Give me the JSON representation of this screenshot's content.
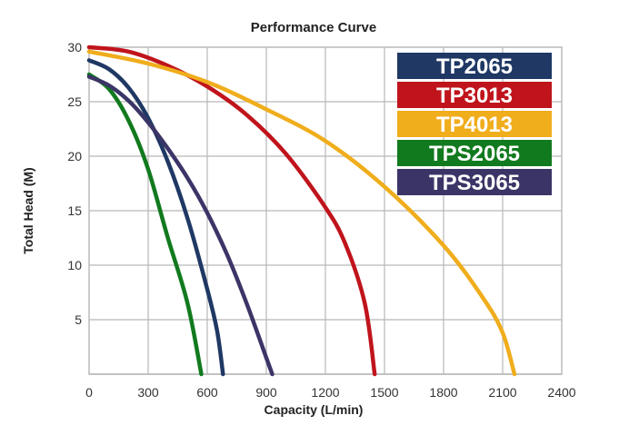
{
  "chart_data": {
    "type": "line",
    "title": "Performance Curve",
    "xlabel": "Capacity (L/min)",
    "ylabel": "Total Head (M)",
    "xlim": [
      0,
      2400
    ],
    "ylim": [
      0,
      30
    ],
    "x_ticks": [
      "0",
      "300",
      "600",
      "900",
      "1200",
      "1500",
      "1800",
      "2100",
      "2400"
    ],
    "y_ticks": [
      "5",
      "10",
      "15",
      "20",
      "25",
      "30"
    ],
    "grid": true,
    "legend_position": "top-right",
    "series": [
      {
        "name": "TP2065",
        "color": "#1f3864",
        "points": [
          [
            0,
            28.8
          ],
          [
            100,
            28.0
          ],
          [
            200,
            26.3
          ],
          [
            300,
            23.5
          ],
          [
            400,
            19.5
          ],
          [
            500,
            14.3
          ],
          [
            600,
            7.8
          ],
          [
            650,
            4.0
          ],
          [
            680,
            0
          ]
        ]
      },
      {
        "name": "TP3013",
        "color": "#c0141c",
        "points": [
          [
            0,
            30
          ],
          [
            200,
            29.6
          ],
          [
            400,
            28.3
          ],
          [
            600,
            26.4
          ],
          [
            800,
            23.8
          ],
          [
            1000,
            20.2
          ],
          [
            1200,
            15.3
          ],
          [
            1300,
            12.0
          ],
          [
            1400,
            6.5
          ],
          [
            1450,
            0
          ]
        ]
      },
      {
        "name": "TP4013",
        "color": "#f0ad1c",
        "points": [
          [
            0,
            29.6
          ],
          [
            300,
            28.5
          ],
          [
            600,
            26.8
          ],
          [
            900,
            24.3
          ],
          [
            1200,
            21.4
          ],
          [
            1500,
            17.2
          ],
          [
            1800,
            11.8
          ],
          [
            2000,
            7.0
          ],
          [
            2100,
            3.8
          ],
          [
            2160,
            0
          ]
        ]
      },
      {
        "name": "TPS2065",
        "color": "#117a1e",
        "points": [
          [
            0,
            27.5
          ],
          [
            100,
            26.2
          ],
          [
            200,
            23.3
          ],
          [
            300,
            18.8
          ],
          [
            400,
            12.5
          ],
          [
            500,
            6.5
          ],
          [
            570,
            0
          ]
        ]
      },
      {
        "name": "TPS3065",
        "color": "#3b3567",
        "points": [
          [
            0,
            27.3
          ],
          [
            100,
            26.5
          ],
          [
            200,
            25.1
          ],
          [
            300,
            23.1
          ],
          [
            400,
            20.7
          ],
          [
            500,
            18.0
          ],
          [
            600,
            14.8
          ],
          [
            700,
            11.0
          ],
          [
            800,
            6.5
          ],
          [
            900,
            1.5
          ],
          [
            930,
            0
          ]
        ]
      }
    ]
  }
}
